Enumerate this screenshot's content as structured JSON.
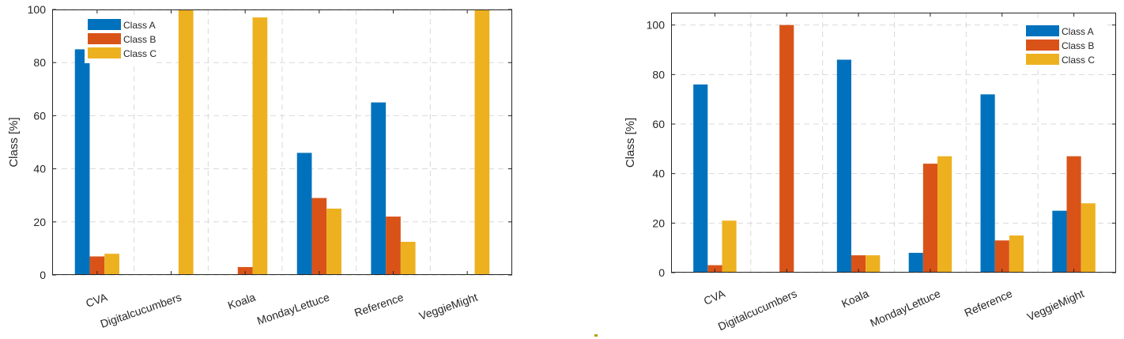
{
  "colors": {
    "Class A": "#0072BD",
    "Class B": "#D95319",
    "Class C": "#EDB120"
  },
  "chart_data": [
    {
      "type": "bar",
      "title": "",
      "xlabel": "",
      "ylabel": "Class [%]",
      "ylim": [
        0,
        100
      ],
      "yticks": [
        0,
        20,
        40,
        60,
        80,
        100
      ],
      "grid": true,
      "legend_position": "top-left",
      "categories": [
        "CVA",
        "Digitalcucumbers",
        "Koala",
        "MondayLettuce",
        "Reference",
        "VeggieMight"
      ],
      "series": [
        {
          "name": "Class A",
          "values": [
            85,
            0,
            0,
            46,
            65,
            0
          ]
        },
        {
          "name": "Class B",
          "values": [
            7,
            0,
            3,
            29,
            22,
            0
          ]
        },
        {
          "name": "Class C",
          "values": [
            8,
            100,
            97,
            25,
            12.5,
            100
          ]
        }
      ]
    },
    {
      "type": "bar",
      "title": "",
      "xlabel": "",
      "ylabel": "Class [%]",
      "ylim": [
        0,
        105
      ],
      "yticks": [
        0,
        20,
        40,
        60,
        80,
        100
      ],
      "grid": true,
      "legend_position": "top-right",
      "categories": [
        "CVA",
        "Digitalcucumbers",
        "Koala",
        "MondayLettuce",
        "Reference",
        "VeggieMight"
      ],
      "series": [
        {
          "name": "Class A",
          "values": [
            76,
            0,
            86,
            8,
            72,
            25
          ]
        },
        {
          "name": "Class B",
          "values": [
            3,
            100,
            7,
            44,
            13,
            47
          ]
        },
        {
          "name": "Class C",
          "values": [
            21,
            0,
            7,
            47,
            15,
            28
          ]
        }
      ]
    }
  ]
}
